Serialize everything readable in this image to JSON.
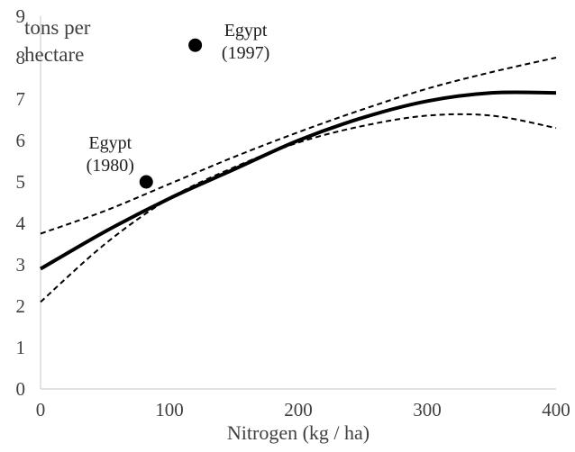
{
  "chart_data": {
    "type": "line",
    "title": "",
    "xlabel": "Nitrogen (kg / ha)",
    "ylabel": "",
    "unit_label": [
      "tons per",
      "hectare"
    ],
    "xlim": [
      0,
      400
    ],
    "ylim": [
      0,
      9
    ],
    "x_ticks": [
      0,
      100,
      200,
      300,
      400
    ],
    "y_ticks": [
      0,
      1,
      2,
      3,
      4,
      5,
      6,
      7,
      8,
      9
    ],
    "grid": false,
    "legend": "none",
    "series": [
      {
        "style": "solid",
        "color": "#000000",
        "x": [
          0,
          50,
          100,
          150,
          200,
          250,
          300,
          350,
          400
        ],
        "y": [
          2.9,
          3.8,
          4.6,
          5.3,
          6.0,
          6.55,
          6.95,
          7.15,
          7.15
        ]
      },
      {
        "style": "dashed",
        "color": "#000000",
        "x": [
          0,
          50,
          100,
          150,
          200,
          250,
          300,
          350,
          400
        ],
        "y": [
          3.75,
          4.3,
          4.95,
          5.6,
          6.2,
          6.75,
          7.25,
          7.65,
          8.0
        ]
      },
      {
        "style": "dashed",
        "color": "#000000",
        "x": [
          0,
          50,
          100,
          150,
          200,
          250,
          300,
          350,
          400
        ],
        "y": [
          2.1,
          3.5,
          4.6,
          5.35,
          5.95,
          6.35,
          6.6,
          6.6,
          6.3
        ]
      }
    ],
    "points": [
      {
        "x": 82,
        "y": 5.0,
        "label": [
          "Egypt",
          "(1980)"
        ]
      },
      {
        "x": 120,
        "y": 8.3,
        "label": [
          "Egypt",
          "(1997)"
        ]
      }
    ]
  }
}
